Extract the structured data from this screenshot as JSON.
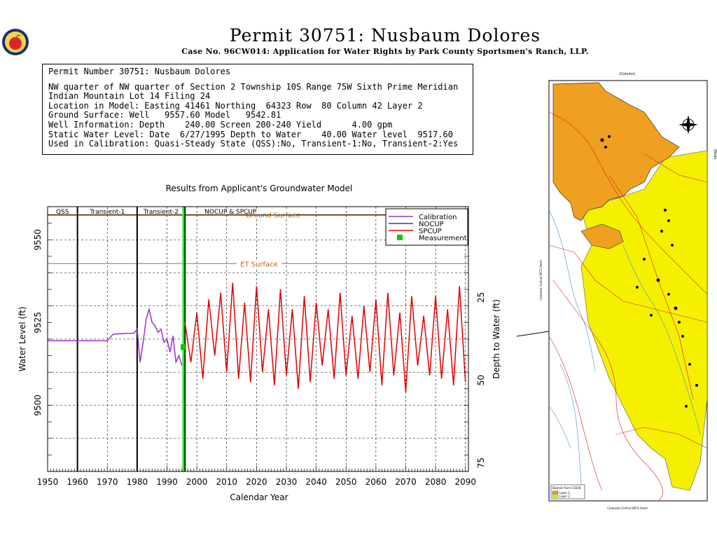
{
  "header": {
    "title": "Permit 30751:  Nusbaum Dolores",
    "subtitle": "Case No. 96CW014: Application for Water Rights by Park County Sportsmen's Ranch, LLP."
  },
  "info_box": {
    "lines": [
      "Permit Number 30751: Nusbaum Dolores",
      "NW quarter of NW quarter of Section 2 Township 10S Range 75W Sixth Prime Meridian",
      "Indian Mountain Lot 14 Filing 24",
      "Location in Model: Easting 41461 Northing  64323 Row  80 Column 42 Layer 2",
      "Ground Surface: Well   9557.60 Model   9542.81",
      "Well Information: Depth    240.00 Screen 200-240 Yield      4.00 gpm",
      "Static Water Level: Date  6/27/1995 Depth to Water    40.00 Water level  9517.60",
      "Used in Calibration: Quasi-Steady State (QSS):No, Transient-1:No, Transient-2:Yes"
    ]
  },
  "chart_data": {
    "type": "line",
    "title": "Results from Applicant's Groundwater Model",
    "xlabel": "Calendar Year",
    "ylabel": "Water Level (ft)",
    "ylabel_right": "Depth to Water (ft)",
    "xlim": [
      1950,
      2091
    ],
    "ylim": [
      9480,
      9560
    ],
    "xticks": [
      "1950",
      "1960",
      "1970",
      "1980",
      "1990",
      "2000",
      "2010",
      "2020",
      "2030",
      "2040",
      "2050",
      "2060",
      "2070",
      "2080",
      "2090"
    ],
    "yticks": [
      "9500",
      "9525",
      "9550"
    ],
    "yticks_right": [
      "25",
      "50",
      "75"
    ],
    "grid": true,
    "legend_placement": "top-right",
    "periods": [
      {
        "label": "QSS",
        "start": 1950,
        "end": 1960
      },
      {
        "label": "Transient-1",
        "start": 1960,
        "end": 1980
      },
      {
        "label": "Transient-2",
        "start": 1980,
        "end": 1996
      },
      {
        "label": "NOCUP & SPCUP",
        "start": 1996,
        "end": 2091
      }
    ],
    "reference_lines": [
      {
        "label": "Ground Surface",
        "y": 9557.6
      },
      {
        "label": "ET Surface",
        "y": 9542.8
      }
    ],
    "measurement_year": 1995.5,
    "series": [
      {
        "name": "Calibration",
        "color": "#9933cc",
        "x": [
          1950,
          1970,
          1972,
          1979,
          1980,
          1981,
          1982,
          1983,
          1984,
          1985,
          1986,
          1987,
          1988,
          1989,
          1990,
          1991,
          1992,
          1993,
          1994,
          1995
        ],
        "y": [
          9519.5,
          9519.5,
          9521.5,
          9521.8,
          9523,
          9513,
          9519,
          9526,
          9529,
          9525,
          9524,
          9522,
          9523,
          9519,
          9520,
          9516,
          9521,
          9513,
          9515,
          9512
        ]
      },
      {
        "name": "NOCUP",
        "color": "#3333cc",
        "x": [],
        "y": []
      },
      {
        "name": "SPCUP",
        "color": "#e00000",
        "x": [
          1996,
          1998,
          2000,
          2002,
          2004,
          2006,
          2008,
          2010,
          2012,
          2014,
          2016,
          2018,
          2020,
          2022,
          2024,
          2026,
          2028,
          2030,
          2032,
          2034,
          2036,
          2038,
          2040,
          2042,
          2044,
          2046,
          2048,
          2050,
          2052,
          2054,
          2056,
          2058,
          2060,
          2062,
          2064,
          2066,
          2068,
          2070,
          2072,
          2074,
          2076,
          2078,
          2080,
          2082,
          2084,
          2086,
          2088,
          2090
        ],
        "y": [
          9525,
          9513,
          9528,
          9508,
          9532,
          9515,
          9534,
          9510,
          9537,
          9508,
          9531,
          9507,
          9536,
          9510,
          9529,
          9506,
          9535,
          9509,
          9529,
          9505,
          9533,
          9507,
          9531,
          9512,
          9529,
          9508,
          9534,
          9509,
          9527,
          9508,
          9530,
          9510,
          9532,
          9506,
          9534,
          9509,
          9528,
          9504,
          9533,
          9512,
          9527,
          9509,
          9533,
          9508,
          9529,
          9506,
          9536,
          9507
        ]
      },
      {
        "name": "Measurement",
        "color": "#00cc00",
        "x": [
          1995.5
        ],
        "y": [
          9517.6
        ]
      }
    ]
  },
  "map": {
    "x_axis_top": "(Column)",
    "y_axis_left": "Colorado Central SPCS (feet)",
    "y_axis_right": "(Row)",
    "x_axis_bottom": "Colorado Central SPCS (feet)",
    "legend_title": "Domain from CSS18",
    "legend_items": [
      "Layer 1",
      "Layer 2"
    ],
    "colors": {
      "layer1": "#f0a020",
      "layer2": "#f5f000"
    }
  },
  "logo": {
    "icon": "apple-seal-icon"
  }
}
